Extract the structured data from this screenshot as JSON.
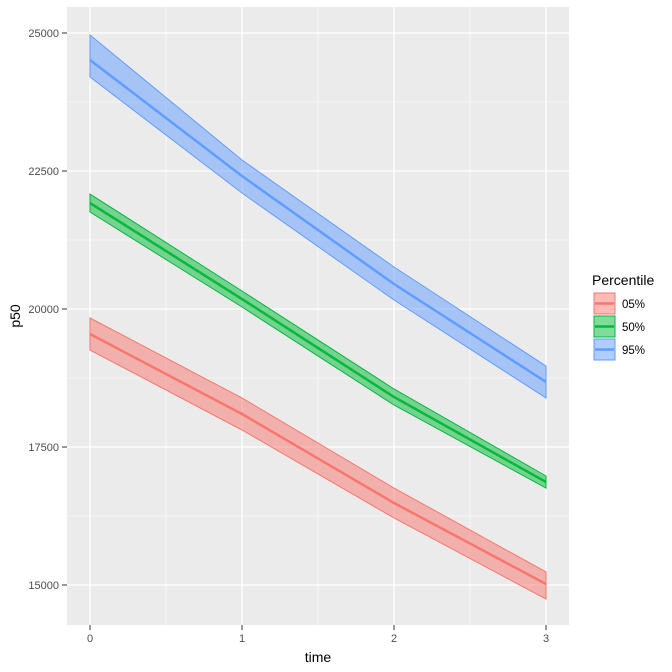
{
  "chart_data": {
    "type": "line",
    "subtype": "line-with-ribbon",
    "title": "",
    "xlabel": "time",
    "ylabel": "p50",
    "xlim": [
      -0.15,
      3.15
    ],
    "ylim": [
      14300,
      25500
    ],
    "x_ticks": [
      0,
      1,
      2,
      3
    ],
    "x_tick_labels": [
      "0",
      "1",
      "2",
      "3"
    ],
    "y_ticks": [
      15000,
      17500,
      20000,
      22500,
      25000
    ],
    "y_tick_labels": [
      "15000",
      "17500",
      "20000",
      "22500",
      "25000"
    ],
    "grid": true,
    "legend": {
      "title": "Percentile",
      "position": "right"
    },
    "x": [
      0,
      1,
      2,
      3
    ],
    "series": [
      {
        "name": "05%",
        "color": "#F8766D",
        "values": [
          19547,
          18098,
          16486,
          15018
        ],
        "lower": [
          19257,
          17808,
          16214,
          14746
        ],
        "upper": [
          19837,
          18388,
          16757,
          15236
        ]
      },
      {
        "name": "50%",
        "color": "#00BA38",
        "values": [
          21920,
          20181,
          18406,
          16866
        ],
        "lower": [
          21757,
          20036,
          18261,
          16757
        ],
        "upper": [
          22083,
          20326,
          18551,
          16975
        ]
      },
      {
        "name": "95%",
        "color": "#619CFF",
        "values": [
          24511,
          22409,
          20453,
          18678
        ],
        "lower": [
          24203,
          22101,
          20163,
          18388
        ],
        "upper": [
          24964,
          22699,
          20761,
          18967
        ]
      }
    ]
  },
  "colors": {
    "panel_bg": "#EBEBEB",
    "grid_major": "#FFFFFF",
    "tick_text": "#4D4D4D"
  }
}
